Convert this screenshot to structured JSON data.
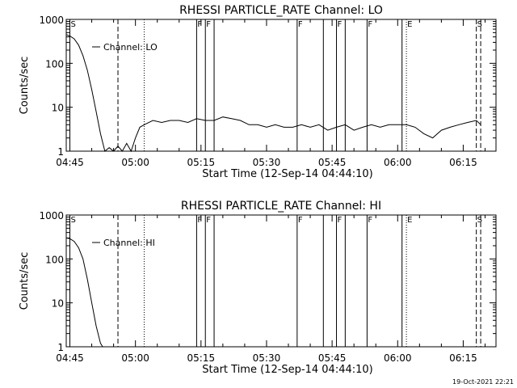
{
  "footer_date": "19-Oct-2021 22:21",
  "chart_data": [
    {
      "type": "line",
      "title": "RHESSI PARTICLE_RATE Channel: LO",
      "xlabel": "Start Time (12-Sep-14 04:44:10)",
      "ylabel": "Counts/sec",
      "y_scale": "log",
      "ylim": [
        1,
        1000
      ],
      "xlim": [
        "04:44:10",
        "06:22:30"
      ],
      "x_ticks": [
        "04:45",
        "05:00",
        "05:15",
        "05:30",
        "05:45",
        "06:00",
        "06:15"
      ],
      "y_ticks": [
        "1",
        "10",
        "100",
        "1000"
      ],
      "legend": "Channel: LO",
      "legend_position": "top-left",
      "series": [
        {
          "name": "Channel: LO",
          "x": [
            "04:44:10",
            "04:45",
            "04:46",
            "04:47",
            "04:48",
            "04:49",
            "04:50",
            "04:51",
            "04:52",
            "04:53",
            "04:54",
            "04:55",
            "04:56",
            "04:57",
            "04:58",
            "04:59",
            "05:00",
            "05:01",
            "05:02",
            "05:04",
            "05:06",
            "05:08",
            "05:10",
            "05:12",
            "05:14",
            "05:16",
            "05:18",
            "05:20",
            "05:22",
            "05:24",
            "05:26",
            "05:28",
            "05:30",
            "05:32",
            "05:34",
            "05:36",
            "05:38",
            "05:40",
            "05:42",
            "05:44",
            "05:46",
            "05:48",
            "05:50",
            "05:52",
            "05:54",
            "05:56",
            "05:58",
            "06:00",
            "06:02",
            "06:04",
            "06:06",
            "06:08",
            "06:10",
            "06:12",
            "06:14",
            "06:16",
            "06:18",
            "06:19"
          ],
          "values": [
            450,
            420,
            360,
            260,
            150,
            70,
            25,
            8,
            2.5,
            1,
            1.2,
            1,
            1.3,
            1,
            1.5,
            1,
            2,
            3.5,
            4,
            5,
            4.5,
            5,
            5,
            4.5,
            5.5,
            5,
            5,
            6,
            5.5,
            5,
            4,
            4,
            3.5,
            4,
            3.5,
            3.5,
            4,
            3.5,
            4,
            3,
            3.5,
            4,
            3,
            3.5,
            4,
            3.5,
            4,
            4,
            4,
            3.5,
            2.5,
            2,
            3,
            3.5,
            4,
            4.5,
            5,
            4
          ]
        }
      ],
      "event_markers": [
        {
          "label": "S",
          "time": "04:45",
          "style": "solid"
        },
        {
          "label": "",
          "time": "04:56",
          "style": "dashed"
        },
        {
          "label": "",
          "time": "05:02",
          "style": "dotted"
        },
        {
          "label": "F",
          "time": "05:14",
          "style": "solid"
        },
        {
          "label": "F",
          "time": "05:16",
          "style": "solid"
        },
        {
          "label": "",
          "time": "05:18",
          "style": "solid"
        },
        {
          "label": "F",
          "time": "05:37",
          "style": "solid"
        },
        {
          "label": "",
          "time": "05:43",
          "style": "solid"
        },
        {
          "label": "F",
          "time": "05:46",
          "style": "solid"
        },
        {
          "label": "",
          "time": "05:48",
          "style": "solid"
        },
        {
          "label": "F",
          "time": "05:53",
          "style": "solid"
        },
        {
          "label": "",
          "time": "06:01",
          "style": "solid"
        },
        {
          "label": "E",
          "time": "06:02",
          "style": "dotted"
        },
        {
          "label": "S",
          "time": "06:18",
          "style": "dashed"
        },
        {
          "label": "",
          "time": "06:19",
          "style": "dashed"
        }
      ]
    },
    {
      "type": "line",
      "title": "RHESSI PARTICLE_RATE Channel: HI",
      "xlabel": "Start Time (12-Sep-14 04:44:10)",
      "ylabel": "Counts/sec",
      "y_scale": "log",
      "ylim": [
        1,
        1000
      ],
      "xlim": [
        "04:44:10",
        "06:22:30"
      ],
      "x_ticks": [
        "04:45",
        "05:00",
        "05:15",
        "05:30",
        "05:45",
        "06:00",
        "06:15"
      ],
      "y_ticks": [
        "1",
        "10",
        "100",
        "1000"
      ],
      "legend": "Channel: HI",
      "legend_position": "top-left",
      "series": [
        {
          "name": "Channel: HI",
          "x": [
            "04:44:10",
            "04:45",
            "04:46",
            "04:47",
            "04:48",
            "04:49",
            "04:50",
            "04:51",
            "04:52",
            "04:52:30"
          ],
          "values": [
            300,
            290,
            250,
            180,
            100,
            35,
            10,
            3,
            1.2,
            1
          ]
        }
      ],
      "event_markers": [
        {
          "label": "S",
          "time": "04:45",
          "style": "solid"
        },
        {
          "label": "",
          "time": "04:56",
          "style": "dashed"
        },
        {
          "label": "",
          "time": "05:02",
          "style": "dotted"
        },
        {
          "label": "F",
          "time": "05:14",
          "style": "solid"
        },
        {
          "label": "F",
          "time": "05:16",
          "style": "solid"
        },
        {
          "label": "",
          "time": "05:18",
          "style": "solid"
        },
        {
          "label": "F",
          "time": "05:37",
          "style": "solid"
        },
        {
          "label": "",
          "time": "05:43",
          "style": "solid"
        },
        {
          "label": "F",
          "time": "05:46",
          "style": "solid"
        },
        {
          "label": "",
          "time": "05:48",
          "style": "solid"
        },
        {
          "label": "F",
          "time": "05:53",
          "style": "solid"
        },
        {
          "label": "",
          "time": "06:01",
          "style": "solid"
        },
        {
          "label": "E",
          "time": "06:02",
          "style": "dotted"
        },
        {
          "label": "S",
          "time": "06:18",
          "style": "dashed"
        },
        {
          "label": "",
          "time": "06:19",
          "style": "dashed"
        }
      ]
    }
  ]
}
